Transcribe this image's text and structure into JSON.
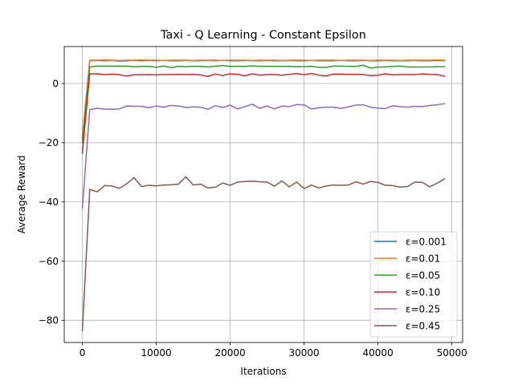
{
  "chart_data": {
    "type": "line",
    "title": "Taxi - Q Learning - Constant Epsilon",
    "xlabel": "Iterations",
    "ylabel": "Average Reward",
    "xlim": [
      -2450,
      51450
    ],
    "ylim": [
      -87.5,
      12.5
    ],
    "xticks": [
      0,
      10000,
      20000,
      30000,
      40000,
      50000
    ],
    "xtick_labels": [
      "0",
      "10000",
      "20000",
      "30000",
      "40000",
      "50000"
    ],
    "yticks": [
      -80,
      -60,
      -40,
      -20,
      0
    ],
    "ytick_labels": [
      "−80",
      "−60",
      "−40",
      "−20",
      "0"
    ],
    "grid": true,
    "legend_position": "lower-right",
    "x": [
      0,
      1000,
      2000,
      3000,
      4000,
      5000,
      6000,
      7000,
      8000,
      9000,
      10000,
      11000,
      12000,
      13000,
      14000,
      15000,
      16000,
      17000,
      18000,
      19000,
      20000,
      21000,
      22000,
      23000,
      24000,
      25000,
      26000,
      27000,
      28000,
      29000,
      30000,
      31000,
      32000,
      33000,
      34000,
      35000,
      36000,
      37000,
      38000,
      39000,
      40000,
      41000,
      42000,
      43000,
      44000,
      45000,
      46000,
      47000,
      48000,
      49000
    ],
    "series": [
      {
        "name": "ε=0.001",
        "color": "#1f77b4",
        "values": [
          -18.5,
          7.7,
          7.8,
          7.7,
          7.8,
          7.6,
          7.7,
          7.8,
          7.7,
          7.8,
          7.7,
          7.8,
          7.7,
          7.7,
          7.8,
          7.7,
          7.7,
          7.8,
          7.7,
          7.8,
          7.7,
          7.7,
          7.8,
          7.7,
          7.7,
          7.8,
          7.7,
          7.7,
          7.8,
          7.7,
          7.7,
          7.8,
          7.7,
          7.7,
          7.7,
          7.8,
          7.7,
          7.7,
          7.8,
          7.7,
          7.7,
          7.8,
          7.7,
          7.7,
          7.7,
          7.8,
          7.7,
          7.7,
          7.8,
          7.7
        ]
      },
      {
        "name": "ε=0.01",
        "color": "#ff7f0e",
        "values": [
          -18.0,
          7.9,
          7.9,
          8.0,
          7.9,
          7.8,
          7.9,
          7.9,
          8.0,
          7.9,
          7.9,
          7.8,
          7.9,
          7.9,
          7.9,
          7.8,
          7.9,
          7.9,
          7.9,
          7.8,
          7.9,
          7.9,
          7.9,
          7.8,
          7.9,
          7.9,
          7.9,
          7.8,
          7.9,
          7.9,
          7.9,
          7.8,
          7.9,
          7.9,
          7.9,
          7.8,
          7.9,
          7.9,
          7.9,
          7.8,
          7.9,
          7.9,
          7.9,
          7.8,
          7.9,
          7.9,
          7.9,
          7.9,
          8.0,
          7.9
        ]
      },
      {
        "name": "ε=0.05",
        "color": "#2ca02c",
        "values": [
          -20.0,
          5.6,
          5.9,
          5.9,
          5.9,
          5.9,
          5.9,
          5.7,
          5.8,
          5.8,
          5.5,
          5.9,
          5.4,
          5.8,
          5.7,
          5.8,
          5.8,
          5.6,
          5.9,
          6.1,
          5.8,
          5.8,
          5.8,
          6.0,
          5.8,
          5.8,
          5.8,
          5.8,
          5.8,
          5.7,
          5.7,
          5.8,
          5.5,
          5.5,
          5.9,
          5.9,
          5.8,
          5.8,
          6.2,
          5.2,
          5.6,
          5.6,
          5.8,
          5.9,
          5.6,
          5.6,
          5.6,
          5.6,
          5.7,
          5.7
        ]
      },
      {
        "name": "ε=0.10",
        "color": "#d62728",
        "values": [
          -23.5,
          3.3,
          3.3,
          3.0,
          3.2,
          3.0,
          2.5,
          3.0,
          2.9,
          3.0,
          2.9,
          3.0,
          3.0,
          3.1,
          3.0,
          3.1,
          2.9,
          2.4,
          3.2,
          2.7,
          3.3,
          3.1,
          2.6,
          3.3,
          2.8,
          3.0,
          3.0,
          2.8,
          3.1,
          3.4,
          3.0,
          3.4,
          2.8,
          2.6,
          3.2,
          3.2,
          3.1,
          3.1,
          3.0,
          2.7,
          2.8,
          3.3,
          2.9,
          3.0,
          3.0,
          3.0,
          3.3,
          3.1,
          3.0,
          2.5
        ]
      },
      {
        "name": "ε=0.25",
        "color": "#9467bd",
        "values": [
          -42.0,
          -8.8,
          -8.4,
          -8.6,
          -8.7,
          -8.6,
          -7.6,
          -7.7,
          -7.7,
          -8.2,
          -7.6,
          -8.0,
          -7.4,
          -7.6,
          -8.1,
          -7.9,
          -8.0,
          -8.7,
          -7.5,
          -8.1,
          -7.3,
          -8.6,
          -7.8,
          -7.0,
          -8.4,
          -7.6,
          -8.6,
          -7.6,
          -7.8,
          -7.1,
          -7.2,
          -8.6,
          -8.2,
          -8.0,
          -8.0,
          -8.4,
          -7.9,
          -7.3,
          -7.2,
          -8.0,
          -8.3,
          -8.5,
          -7.5,
          -7.8,
          -8.0,
          -7.7,
          -7.8,
          -7.4,
          -7.2,
          -6.8
        ]
      },
      {
        "name": "ε=0.45",
        "color": "#8c564b",
        "values": [
          -83.5,
          -35.8,
          -36.6,
          -34.5,
          -34.6,
          -35.4,
          -33.9,
          -31.8,
          -34.8,
          -34.4,
          -34.6,
          -34.3,
          -34.2,
          -34.0,
          -31.5,
          -34.3,
          -34.0,
          -35.3,
          -35.0,
          -33.6,
          -34.4,
          -33.3,
          -33.1,
          -33.0,
          -33.2,
          -33.3,
          -34.7,
          -32.9,
          -34.9,
          -33.3,
          -35.5,
          -34.3,
          -35.3,
          -34.6,
          -34.3,
          -34.4,
          -34.3,
          -33.2,
          -34.0,
          -33.1,
          -33.4,
          -34.4,
          -34.5,
          -35.0,
          -34.8,
          -33.3,
          -33.4,
          -34.9,
          -33.7,
          -32.2
        ]
      }
    ]
  }
}
